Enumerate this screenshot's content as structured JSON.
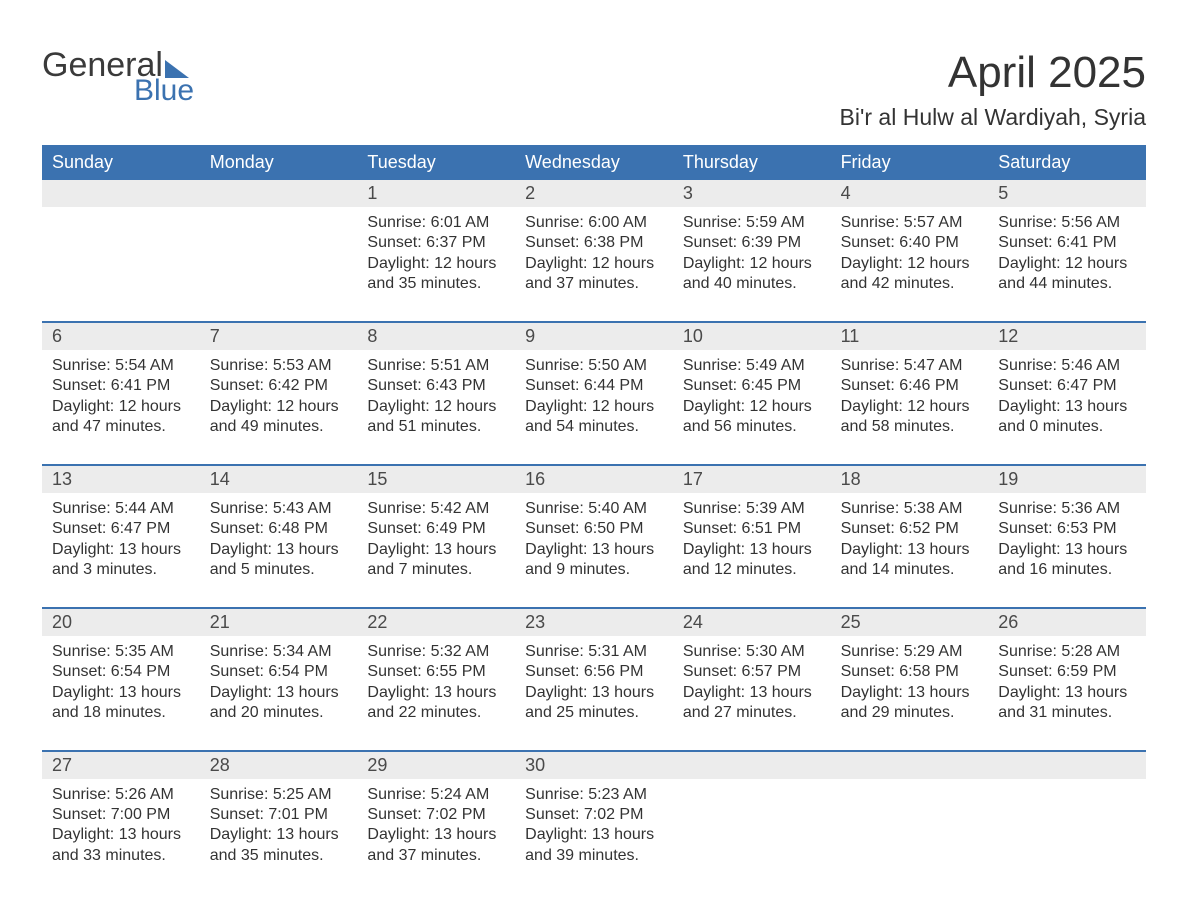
{
  "branding": {
    "logo_word1": "General",
    "logo_word2": "Blue"
  },
  "header": {
    "month_title": "April 2025",
    "location": "Bi'r al Hulw al Wardiyah, Syria"
  },
  "colors": {
    "header_bg": "#3b72b0",
    "header_text": "#ffffff",
    "daynum_bg": "#ececec",
    "week_divider": "#3b72b0",
    "body_text": "#333333",
    "page_bg": "#ffffff"
  },
  "weekdays": [
    "Sunday",
    "Monday",
    "Tuesday",
    "Wednesday",
    "Thursday",
    "Friday",
    "Saturday"
  ],
  "weeks": [
    {
      "days": [
        {
          "n": "",
          "sunrise": "",
          "sunset": "",
          "daylight": ""
        },
        {
          "n": "",
          "sunrise": "",
          "sunset": "",
          "daylight": ""
        },
        {
          "n": "1",
          "sunrise": "Sunrise: 6:01 AM",
          "sunset": "Sunset: 6:37 PM",
          "daylight": "Daylight: 12 hours and 35 minutes."
        },
        {
          "n": "2",
          "sunrise": "Sunrise: 6:00 AM",
          "sunset": "Sunset: 6:38 PM",
          "daylight": "Daylight: 12 hours and 37 minutes."
        },
        {
          "n": "3",
          "sunrise": "Sunrise: 5:59 AM",
          "sunset": "Sunset: 6:39 PM",
          "daylight": "Daylight: 12 hours and 40 minutes."
        },
        {
          "n": "4",
          "sunrise": "Sunrise: 5:57 AM",
          "sunset": "Sunset: 6:40 PM",
          "daylight": "Daylight: 12 hours and 42 minutes."
        },
        {
          "n": "5",
          "sunrise": "Sunrise: 5:56 AM",
          "sunset": "Sunset: 6:41 PM",
          "daylight": "Daylight: 12 hours and 44 minutes."
        }
      ]
    },
    {
      "days": [
        {
          "n": "6",
          "sunrise": "Sunrise: 5:54 AM",
          "sunset": "Sunset: 6:41 PM",
          "daylight": "Daylight: 12 hours and 47 minutes."
        },
        {
          "n": "7",
          "sunrise": "Sunrise: 5:53 AM",
          "sunset": "Sunset: 6:42 PM",
          "daylight": "Daylight: 12 hours and 49 minutes."
        },
        {
          "n": "8",
          "sunrise": "Sunrise: 5:51 AM",
          "sunset": "Sunset: 6:43 PM",
          "daylight": "Daylight: 12 hours and 51 minutes."
        },
        {
          "n": "9",
          "sunrise": "Sunrise: 5:50 AM",
          "sunset": "Sunset: 6:44 PM",
          "daylight": "Daylight: 12 hours and 54 minutes."
        },
        {
          "n": "10",
          "sunrise": "Sunrise: 5:49 AM",
          "sunset": "Sunset: 6:45 PM",
          "daylight": "Daylight: 12 hours and 56 minutes."
        },
        {
          "n": "11",
          "sunrise": "Sunrise: 5:47 AM",
          "sunset": "Sunset: 6:46 PM",
          "daylight": "Daylight: 12 hours and 58 minutes."
        },
        {
          "n": "12",
          "sunrise": "Sunrise: 5:46 AM",
          "sunset": "Sunset: 6:47 PM",
          "daylight": "Daylight: 13 hours and 0 minutes."
        }
      ]
    },
    {
      "days": [
        {
          "n": "13",
          "sunrise": "Sunrise: 5:44 AM",
          "sunset": "Sunset: 6:47 PM",
          "daylight": "Daylight: 13 hours and 3 minutes."
        },
        {
          "n": "14",
          "sunrise": "Sunrise: 5:43 AM",
          "sunset": "Sunset: 6:48 PM",
          "daylight": "Daylight: 13 hours and 5 minutes."
        },
        {
          "n": "15",
          "sunrise": "Sunrise: 5:42 AM",
          "sunset": "Sunset: 6:49 PM",
          "daylight": "Daylight: 13 hours and 7 minutes."
        },
        {
          "n": "16",
          "sunrise": "Sunrise: 5:40 AM",
          "sunset": "Sunset: 6:50 PM",
          "daylight": "Daylight: 13 hours and 9 minutes."
        },
        {
          "n": "17",
          "sunrise": "Sunrise: 5:39 AM",
          "sunset": "Sunset: 6:51 PM",
          "daylight": "Daylight: 13 hours and 12 minutes."
        },
        {
          "n": "18",
          "sunrise": "Sunrise: 5:38 AM",
          "sunset": "Sunset: 6:52 PM",
          "daylight": "Daylight: 13 hours and 14 minutes."
        },
        {
          "n": "19",
          "sunrise": "Sunrise: 5:36 AM",
          "sunset": "Sunset: 6:53 PM",
          "daylight": "Daylight: 13 hours and 16 minutes."
        }
      ]
    },
    {
      "days": [
        {
          "n": "20",
          "sunrise": "Sunrise: 5:35 AM",
          "sunset": "Sunset: 6:54 PM",
          "daylight": "Daylight: 13 hours and 18 minutes."
        },
        {
          "n": "21",
          "sunrise": "Sunrise: 5:34 AM",
          "sunset": "Sunset: 6:54 PM",
          "daylight": "Daylight: 13 hours and 20 minutes."
        },
        {
          "n": "22",
          "sunrise": "Sunrise: 5:32 AM",
          "sunset": "Sunset: 6:55 PM",
          "daylight": "Daylight: 13 hours and 22 minutes."
        },
        {
          "n": "23",
          "sunrise": "Sunrise: 5:31 AM",
          "sunset": "Sunset: 6:56 PM",
          "daylight": "Daylight: 13 hours and 25 minutes."
        },
        {
          "n": "24",
          "sunrise": "Sunrise: 5:30 AM",
          "sunset": "Sunset: 6:57 PM",
          "daylight": "Daylight: 13 hours and 27 minutes."
        },
        {
          "n": "25",
          "sunrise": "Sunrise: 5:29 AM",
          "sunset": "Sunset: 6:58 PM",
          "daylight": "Daylight: 13 hours and 29 minutes."
        },
        {
          "n": "26",
          "sunrise": "Sunrise: 5:28 AM",
          "sunset": "Sunset: 6:59 PM",
          "daylight": "Daylight: 13 hours and 31 minutes."
        }
      ]
    },
    {
      "days": [
        {
          "n": "27",
          "sunrise": "Sunrise: 5:26 AM",
          "sunset": "Sunset: 7:00 PM",
          "daylight": "Daylight: 13 hours and 33 minutes."
        },
        {
          "n": "28",
          "sunrise": "Sunrise: 5:25 AM",
          "sunset": "Sunset: 7:01 PM",
          "daylight": "Daylight: 13 hours and 35 minutes."
        },
        {
          "n": "29",
          "sunrise": "Sunrise: 5:24 AM",
          "sunset": "Sunset: 7:02 PM",
          "daylight": "Daylight: 13 hours and 37 minutes."
        },
        {
          "n": "30",
          "sunrise": "Sunrise: 5:23 AM",
          "sunset": "Sunset: 7:02 PM",
          "daylight": "Daylight: 13 hours and 39 minutes."
        },
        {
          "n": "",
          "sunrise": "",
          "sunset": "",
          "daylight": ""
        },
        {
          "n": "",
          "sunrise": "",
          "sunset": "",
          "daylight": ""
        },
        {
          "n": "",
          "sunrise": "",
          "sunset": "",
          "daylight": ""
        }
      ]
    }
  ]
}
